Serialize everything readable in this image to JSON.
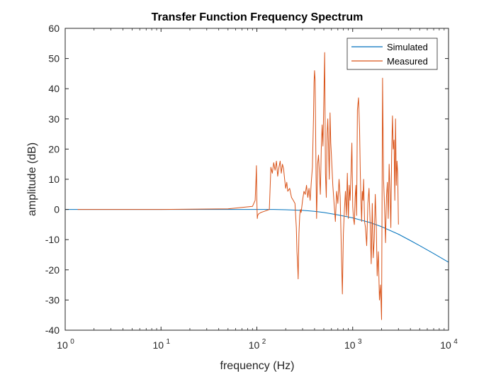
{
  "chart_data": {
    "type": "line",
    "title": "Transfer Function Frequency Spectrum",
    "xlabel": "frequency (Hz)",
    "ylabel": "amplitude (dB)",
    "xscale": "log",
    "xlim": [
      1,
      10000
    ],
    "ylim": [
      -40,
      60
    ],
    "x_ticks": [
      {
        "value": 1,
        "base": "10",
        "exp": "0"
      },
      {
        "value": 10,
        "base": "10",
        "exp": "1"
      },
      {
        "value": 100,
        "base": "10",
        "exp": "2"
      },
      {
        "value": 1000,
        "base": "10",
        "exp": "3"
      },
      {
        "value": 10000,
        "base": "10",
        "exp": "4"
      }
    ],
    "y_ticks": [
      {
        "value": 60,
        "label": "60"
      },
      {
        "value": 50,
        "label": "50"
      },
      {
        "value": 40,
        "label": "40"
      },
      {
        "value": 30,
        "label": "30"
      },
      {
        "value": 20,
        "label": "20"
      },
      {
        "value": 10,
        "label": "10"
      },
      {
        "value": 0,
        "label": "0"
      },
      {
        "value": -10,
        "label": "-10"
      },
      {
        "value": -20,
        "label": "-20"
      },
      {
        "value": -30,
        "label": "-30"
      },
      {
        "value": -40,
        "label": "-40"
      }
    ],
    "grid": false,
    "legend_position": "top-right",
    "series": [
      {
        "name": "Simulated",
        "color": "#0072BD",
        "x": [
          1,
          10,
          50,
          100,
          150,
          200,
          300,
          400,
          500,
          700,
          1000,
          1500,
          2000,
          3000,
          4000,
          5000,
          7000,
          10000
        ],
        "y": [
          0,
          0,
          0,
          0,
          0,
          -0.1,
          -0.3,
          -0.6,
          -1.0,
          -1.8,
          -2.8,
          -4.3,
          -5.7,
          -8.2,
          -10.3,
          -12.0,
          -14.6,
          -17.5
        ]
      },
      {
        "name": "Measured",
        "color": "#D95319",
        "x": [
          1.35,
          10,
          50,
          90,
          96,
          98,
          99,
          100,
          101,
          102,
          104,
          110,
          120,
          135,
          140,
          145,
          150,
          155,
          160,
          165,
          170,
          175,
          180,
          185,
          190,
          195,
          200,
          205,
          210,
          220,
          230,
          240,
          250,
          258,
          262,
          266,
          270,
          275,
          280,
          285,
          290,
          300,
          310,
          320,
          330,
          340,
          350,
          360,
          370,
          380,
          390,
          395,
          400,
          405,
          410,
          415,
          420,
          425,
          430,
          440,
          450,
          460,
          470,
          480,
          490,
          500,
          510,
          520,
          530,
          540,
          550,
          560,
          570,
          580,
          590,
          600,
          620,
          640,
          660,
          680,
          700,
          720,
          740,
          760,
          780,
          800,
          820,
          840,
          860,
          880,
          900,
          920,
          940,
          960,
          980,
          1000,
          1020,
          1040,
          1060,
          1080,
          1100,
          1120,
          1150,
          1180,
          1200,
          1220,
          1240,
          1260,
          1280,
          1300,
          1330,
          1360,
          1400,
          1440,
          1480,
          1520,
          1560,
          1600,
          1640,
          1680,
          1720,
          1760,
          1800,
          1850,
          1900,
          1950,
          2000,
          2050,
          2100,
          2150,
          2200,
          2250,
          2300,
          2350,
          2400,
          2450,
          2500,
          2550,
          2600,
          2650,
          2700,
          2750,
          2800,
          2850,
          2900,
          2950,
          3000
        ],
        "y": [
          0,
          0,
          0.2,
          1.0,
          3.0,
          10.0,
          14.5,
          3.0,
          -3.0,
          -2.0,
          -1.5,
          -1.0,
          -0.6,
          0,
          14.0,
          12.0,
          15.5,
          13.0,
          16.0,
          11.0,
          14.0,
          16.0,
          12.0,
          15.0,
          13.5,
          10.0,
          7.0,
          9.0,
          6.0,
          7.0,
          4.0,
          3.0,
          2.0,
          -6.0,
          -14.0,
          -18.0,
          -23.0,
          -8.0,
          -2.0,
          0,
          -1.0,
          3.0,
          6.0,
          5.0,
          8.0,
          4.0,
          7.0,
          3.0,
          9.0,
          14.0,
          30.0,
          42.0,
          46.0,
          43.0,
          27.0,
          10.0,
          -3.0,
          5.0,
          15.0,
          18.0,
          12.0,
          5.0,
          20.0,
          28.0,
          21.0,
          36.0,
          52.0,
          12.0,
          4.0,
          25.0,
          30.0,
          20.0,
          10.0,
          32.0,
          22.0,
          18.0,
          8.0,
          2.0,
          -4.0,
          6.0,
          2.0,
          10.0,
          4.0,
          -12.0,
          -28.0,
          -8.0,
          0,
          6.0,
          -2.0,
          12.0,
          -3.0,
          8.0,
          3.0,
          12.0,
          22.0,
          1.0,
          -3.0,
          -5.0,
          4.0,
          8.0,
          -2.0,
          33.0,
          37.0,
          26.0,
          12.0,
          3.0,
          -4.0,
          6.0,
          3.0,
          10.0,
          -4.0,
          -6.0,
          -12.0,
          2.0,
          7.0,
          -4.0,
          -18.0,
          2.0,
          -16.0,
          -10.0,
          5.0,
          -5.0,
          -22.0,
          -14.0,
          -30.0,
          -25.0,
          -36.5,
          43.5,
          10.0,
          1.0,
          -11.0,
          4.0,
          9.0,
          -3.0,
          15.0,
          6.0,
          -6.0,
          18.0,
          31.0,
          20.0,
          23.0,
          3.0,
          30.0,
          8.0,
          16.0,
          12.0,
          -5.0
        ]
      }
    ]
  }
}
